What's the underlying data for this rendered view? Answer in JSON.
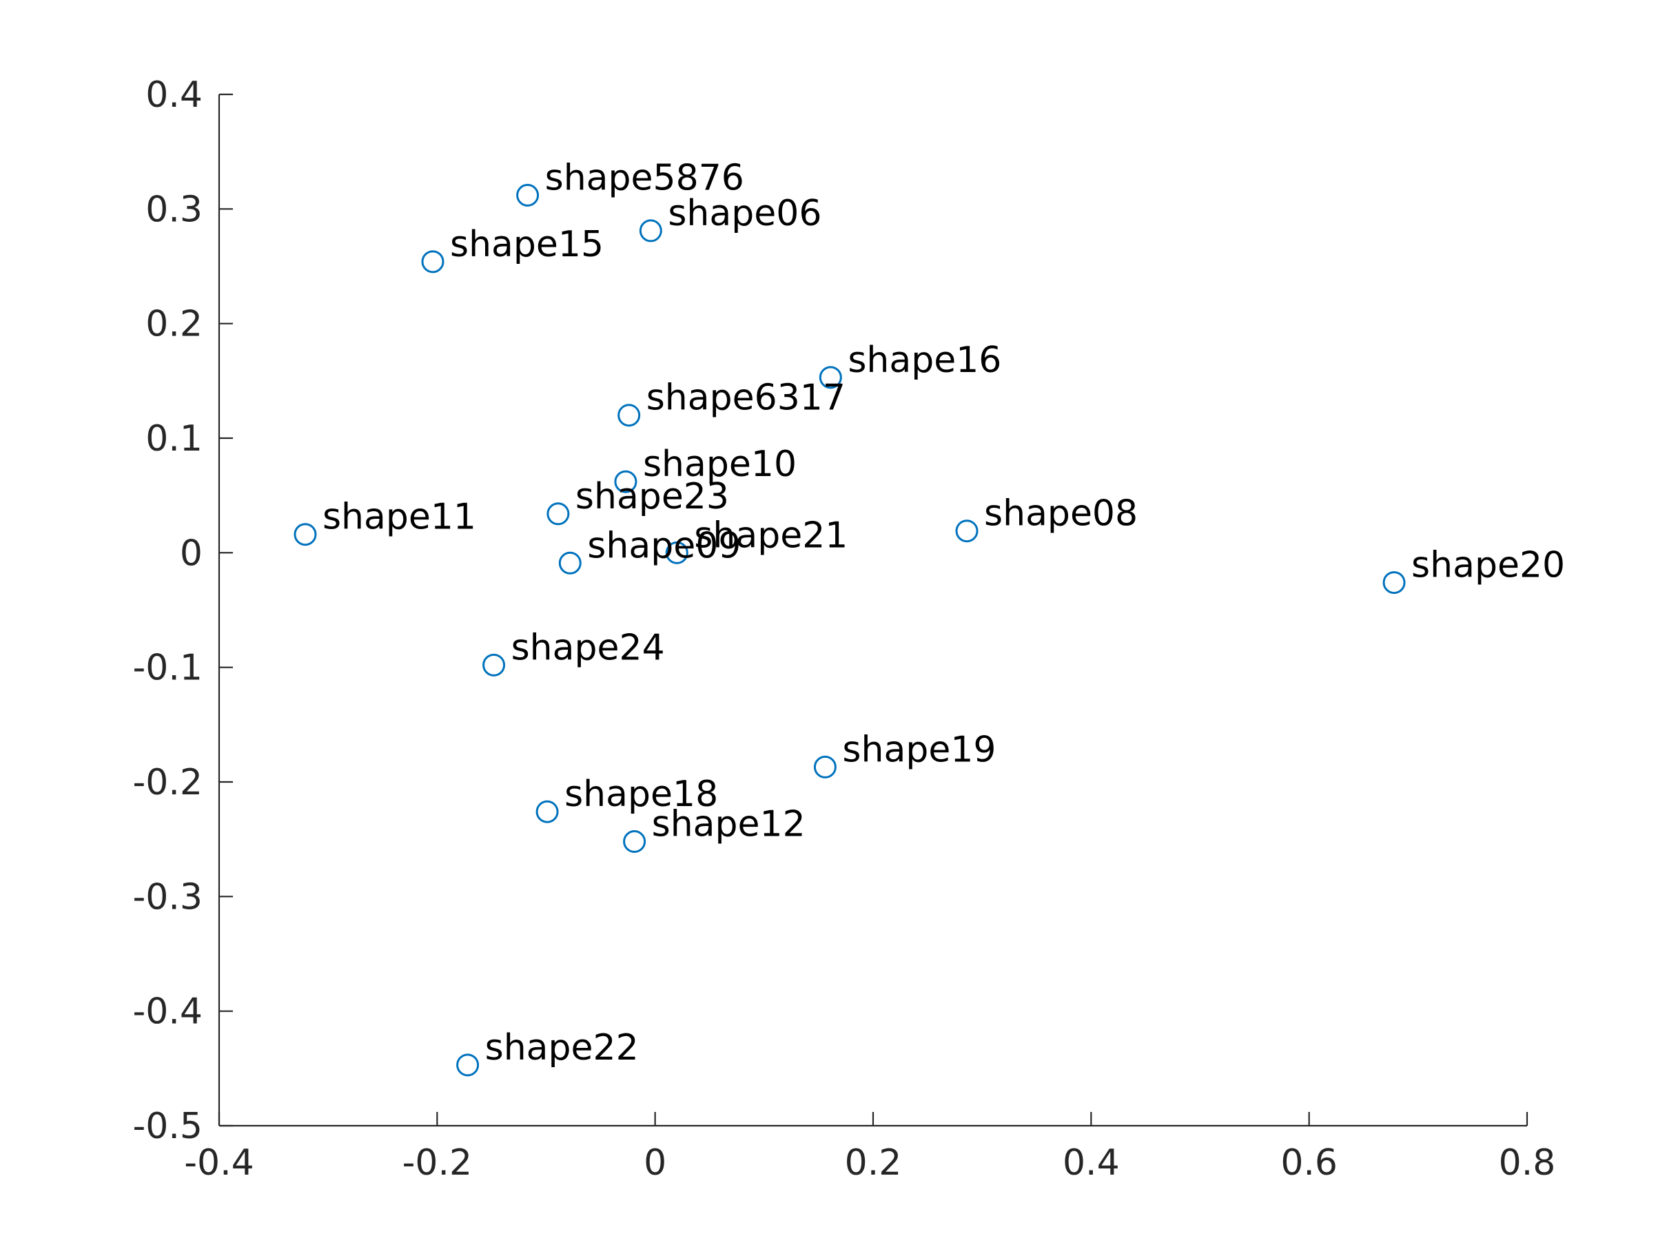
{
  "chart_data": {
    "type": "scatter",
    "title": "",
    "xlabel": "",
    "ylabel": "",
    "xlim": [
      -0.4,
      0.8
    ],
    "ylim": [
      -0.5,
      0.4
    ],
    "x_ticks": [
      "-0.4",
      "-0.2",
      "0",
      "0.2",
      "0.4",
      "0.6",
      "0.8"
    ],
    "y_ticks": [
      "0.4",
      "0.3",
      "0.2",
      "0.1",
      "0",
      "-0.1",
      "-0.2",
      "-0.3",
      "-0.4",
      "-0.5"
    ],
    "grid": false,
    "marker": "open-circle",
    "marker_color": "#0072BD",
    "points": [
      {
        "label": "shape5876",
        "x": -0.117,
        "y": 0.312
      },
      {
        "label": "shape06",
        "x": -0.004,
        "y": 0.281
      },
      {
        "label": "shape15",
        "x": -0.204,
        "y": 0.254
      },
      {
        "label": "shape16",
        "x": 0.161,
        "y": 0.153
      },
      {
        "label": "shape6317",
        "x": -0.024,
        "y": 0.12
      },
      {
        "label": "shape10",
        "x": -0.027,
        "y": 0.062
      },
      {
        "label": "shape23",
        "x": -0.089,
        "y": 0.034
      },
      {
        "label": "shape11",
        "x": -0.321,
        "y": 0.016
      },
      {
        "label": "shape08",
        "x": 0.286,
        "y": 0.019
      },
      {
        "label": "shape21",
        "x": 0.02,
        "y": 0.0
      },
      {
        "label": "shape09",
        "x": -0.078,
        "y": -0.009
      },
      {
        "label": "shape20",
        "x": 0.678,
        "y": -0.026
      },
      {
        "label": "shape24",
        "x": -0.148,
        "y": -0.098
      },
      {
        "label": "shape19",
        "x": 0.156,
        "y": -0.187
      },
      {
        "label": "shape18",
        "x": -0.099,
        "y": -0.226
      },
      {
        "label": "shape12",
        "x": -0.019,
        "y": -0.252
      },
      {
        "label": "shape22",
        "x": -0.172,
        "y": -0.447
      }
    ]
  }
}
